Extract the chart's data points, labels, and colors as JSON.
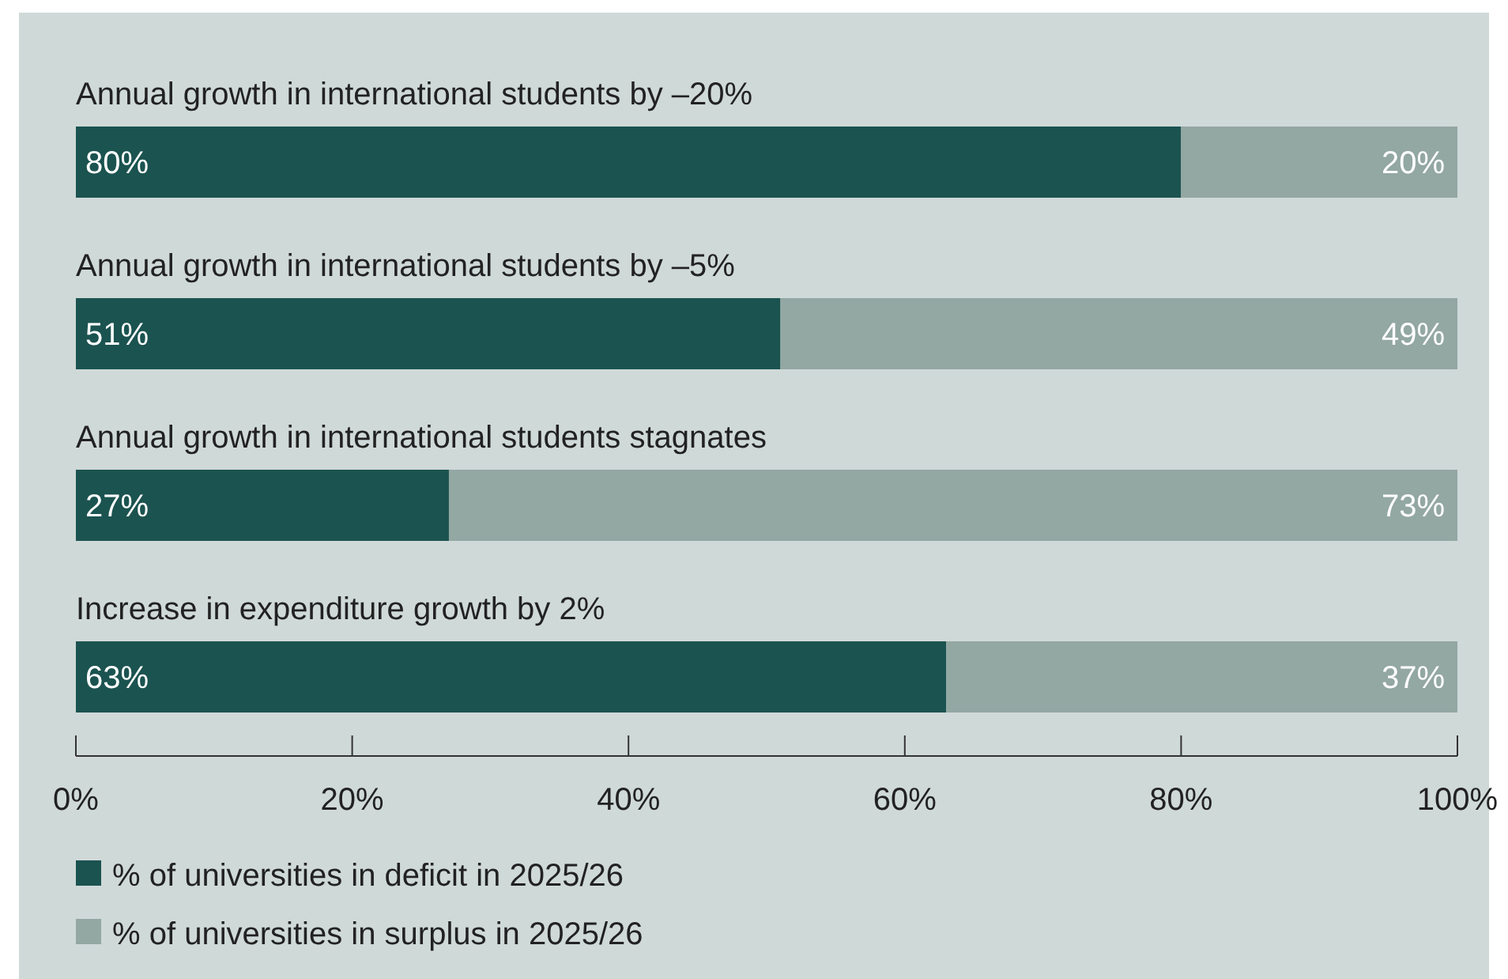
{
  "chart_data": {
    "type": "bar",
    "orientation": "horizontal",
    "stacked": true,
    "categories": [
      "Annual growth in international students by –20%",
      "Annual growth in international students by –5%",
      "Annual growth in international students stagnates",
      "Increase in expenditure growth by 2%"
    ],
    "series": [
      {
        "name": "% of universities in deficit in 2025/26",
        "color": "#1b5350",
        "values": [
          80,
          51,
          27,
          63
        ],
        "value_labels": [
          "80%",
          "51%",
          "27%",
          "63%"
        ]
      },
      {
        "name": "% of universities in surplus in 2025/26",
        "color": "#93a7a3",
        "values": [
          20,
          49,
          73,
          37
        ],
        "value_labels": [
          "20%",
          "49%",
          "73%",
          "37%"
        ]
      }
    ],
    "xlim": [
      0,
      100
    ],
    "xticks": [
      {
        "value": 0,
        "label": "0%"
      },
      {
        "value": 20,
        "label": "20%"
      },
      {
        "value": 40,
        "label": "40%"
      },
      {
        "value": 60,
        "label": "60%"
      },
      {
        "value": 80,
        "label": "80%"
      },
      {
        "value": 100,
        "label": "100%"
      }
    ],
    "legend": "bottom left",
    "grid": false
  }
}
